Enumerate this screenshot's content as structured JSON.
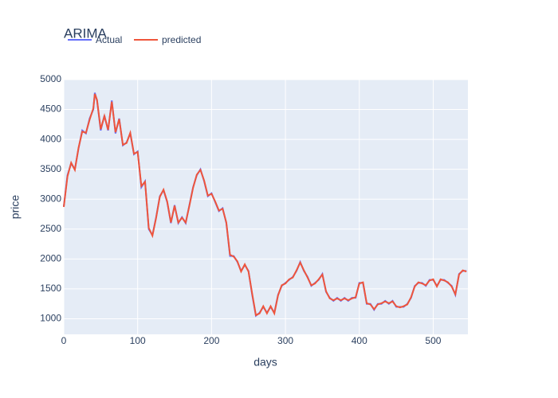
{
  "chart_data": {
    "type": "line",
    "title": "ARIMA",
    "x_label": "days",
    "y_label": "price",
    "x": [
      0,
      5,
      10,
      15,
      20,
      25,
      30,
      35,
      40,
      42,
      45,
      50,
      55,
      60,
      65,
      70,
      75,
      80,
      85,
      90,
      95,
      100,
      105,
      110,
      115,
      120,
      125,
      130,
      135,
      140,
      145,
      150,
      155,
      160,
      165,
      170,
      175,
      180,
      185,
      190,
      195,
      200,
      205,
      210,
      215,
      220,
      225,
      230,
      235,
      240,
      245,
      250,
      255,
      260,
      265,
      270,
      275,
      280,
      285,
      290,
      295,
      300,
      305,
      310,
      315,
      320,
      325,
      330,
      335,
      340,
      345,
      350,
      355,
      360,
      365,
      370,
      375,
      380,
      385,
      390,
      395,
      400,
      405,
      410,
      415,
      420,
      425,
      430,
      435,
      440,
      445,
      450,
      455,
      460,
      465,
      470,
      475,
      480,
      485,
      490,
      495,
      500,
      505,
      510,
      515,
      520,
      525,
      530,
      535,
      540,
      545
    ],
    "series": [
      {
        "name": "Actual",
        "color": "#636efa",
        "values": [
          2880,
          3400,
          3600,
          3500,
          3850,
          4150,
          4100,
          4350,
          4500,
          4780,
          4650,
          4150,
          4400,
          4150,
          4650,
          4100,
          4350,
          3900,
          3950,
          4100,
          3750,
          3800,
          3200,
          3300,
          2500,
          2400,
          2700,
          3050,
          3150,
          2950,
          2600,
          2900,
          2600,
          2700,
          2600,
          2900,
          3200,
          3400,
          3500,
          3300,
          3050,
          3100,
          2950,
          2800,
          2850,
          2600,
          2050,
          2050,
          1950,
          1800,
          1900,
          1800,
          1400,
          1050,
          1100,
          1200,
          1100,
          1200,
          1100,
          1400,
          1550,
          1600,
          1650,
          1700,
          1800,
          1950,
          1800,
          1700,
          1550,
          1600,
          1650,
          1750,
          1450,
          1350,
          1300,
          1350,
          1300,
          1350,
          1300,
          1350,
          1350,
          1600,
          1600,
          1250,
          1250,
          1150,
          1250,
          1250,
          1300,
          1250,
          1300,
          1200,
          1200,
          1200,
          1250,
          1350,
          1550,
          1600,
          1600,
          1550,
          1650,
          1650,
          1550,
          1650,
          1650,
          1600,
          1550,
          1400,
          1750,
          1800,
          1800
        ]
      },
      {
        "name": "predicted",
        "color": "#ef553b",
        "values": [
          2870,
          3380,
          3610,
          3490,
          3860,
          4130,
          4110,
          4330,
          4520,
          4760,
          4660,
          4170,
          4390,
          4160,
          4630,
          4120,
          4340,
          3910,
          3940,
          4110,
          3760,
          3790,
          3220,
          3290,
          2520,
          2390,
          2690,
          3040,
          3160,
          2960,
          2610,
          2890,
          2610,
          2690,
          2610,
          2890,
          3190,
          3410,
          3490,
          3310,
          3060,
          3090,
          2960,
          2810,
          2840,
          2610,
          2070,
          2040,
          1960,
          1790,
          1910,
          1790,
          1420,
          1060,
          1090,
          1210,
          1090,
          1210,
          1090,
          1390,
          1560,
          1590,
          1660,
          1690,
          1810,
          1940,
          1810,
          1690,
          1560,
          1590,
          1660,
          1740,
          1460,
          1340,
          1310,
          1340,
          1310,
          1340,
          1310,
          1340,
          1360,
          1590,
          1610,
          1260,
          1240,
          1160,
          1240,
          1260,
          1290,
          1260,
          1290,
          1210,
          1190,
          1210,
          1240,
          1360,
          1540,
          1610,
          1590,
          1560,
          1640,
          1660,
          1540,
          1660,
          1640,
          1610,
          1540,
          1410,
          1740,
          1810,
          1790
        ]
      }
    ],
    "xlim": [
      0,
      547
    ],
    "ylim": [
      740,
      5000
    ],
    "xticks": [
      0,
      100,
      200,
      300,
      400,
      500
    ],
    "yticks": [
      1000,
      1500,
      2000,
      2500,
      3000,
      3500,
      4000,
      4500,
      5000
    ],
    "grid": true
  }
}
